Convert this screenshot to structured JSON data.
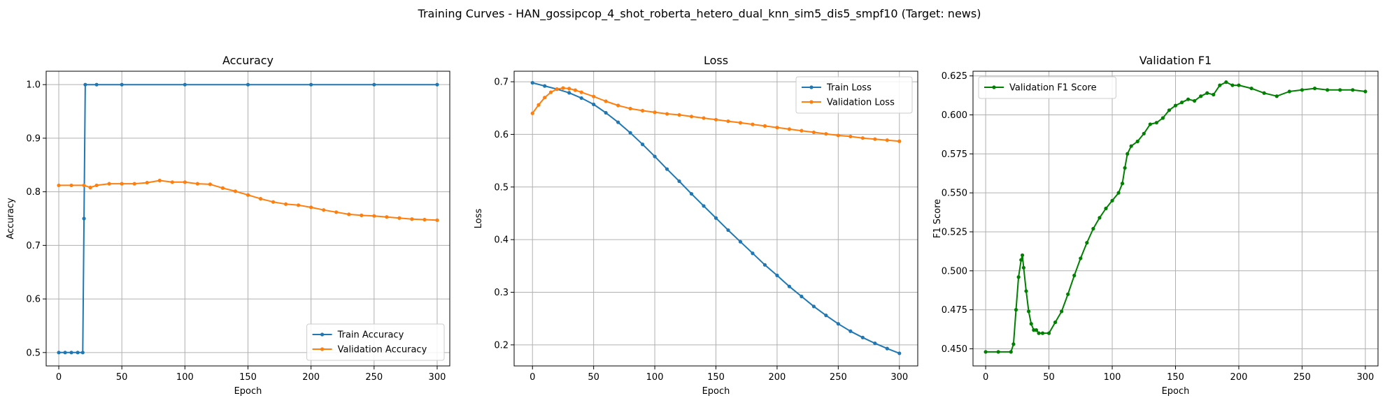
{
  "figure": {
    "suptitle": "Training Curves - HAN_gossipcop_4_shot_roberta_hetero_dual_knn_sim5_dis5_smpf10 (Target: news)"
  },
  "chart_data": [
    {
      "type": "line",
      "title": "Accuracy",
      "xlabel": "Epoch",
      "ylabel": "Accuracy",
      "xlim": [
        -10,
        310
      ],
      "ylim": [
        0.475,
        1.025
      ],
      "xticks": [
        0,
        50,
        100,
        150,
        200,
        250,
        300
      ],
      "yticks": [
        0.5,
        0.6,
        0.7,
        0.8,
        0.9,
        1.0
      ],
      "ytick_labels": [
        "0.5",
        "0.6",
        "0.7",
        "0.8",
        "0.9",
        "1.0"
      ],
      "grid": true,
      "legend": "lower-right",
      "series": [
        {
          "name": "Train Accuracy",
          "color": "#1f77b4",
          "x": [
            0,
            5,
            10,
            15,
            19,
            20,
            21,
            30,
            50,
            100,
            150,
            200,
            250,
            300
          ],
          "y": [
            0.5,
            0.5,
            0.5,
            0.5,
            0.5,
            0.75,
            1.0,
            1.0,
            1.0,
            1.0,
            1.0,
            1.0,
            1.0,
            1.0
          ]
        },
        {
          "name": "Validation Accuracy",
          "color": "#ff7f0e",
          "x": [
            0,
            10,
            20,
            25,
            30,
            40,
            50,
            60,
            70,
            80,
            90,
            100,
            110,
            120,
            130,
            140,
            150,
            160,
            170,
            180,
            190,
            200,
            210,
            220,
            230,
            240,
            250,
            260,
            270,
            280,
            290,
            300
          ],
          "y": [
            0.812,
            0.812,
            0.812,
            0.808,
            0.812,
            0.815,
            0.815,
            0.815,
            0.817,
            0.821,
            0.818,
            0.818,
            0.815,
            0.814,
            0.807,
            0.801,
            0.794,
            0.787,
            0.781,
            0.777,
            0.775,
            0.771,
            0.766,
            0.762,
            0.758,
            0.756,
            0.755,
            0.753,
            0.751,
            0.749,
            0.748,
            0.747
          ]
        }
      ]
    },
    {
      "type": "line",
      "title": "Loss",
      "xlabel": "Epoch",
      "ylabel": "Loss",
      "xlim": [
        -15,
        315
      ],
      "ylim": [
        0.16,
        0.72
      ],
      "xticks": [
        0,
        50,
        100,
        150,
        200,
        250,
        300
      ],
      "yticks": [
        0.2,
        0.3,
        0.4,
        0.5,
        0.6,
        0.7
      ],
      "ytick_labels": [
        "0.2",
        "0.3",
        "0.4",
        "0.5",
        "0.6",
        "0.7"
      ],
      "grid": true,
      "legend": "upper-right",
      "series": [
        {
          "name": "Train Loss",
          "color": "#1f77b4",
          "x": [
            0,
            10,
            20,
            30,
            40,
            50,
            60,
            70,
            80,
            90,
            100,
            110,
            120,
            130,
            140,
            150,
            160,
            170,
            180,
            190,
            200,
            210,
            220,
            230,
            240,
            250,
            260,
            270,
            280,
            290,
            300
          ],
          "y": [
            0.698,
            0.692,
            0.686,
            0.679,
            0.669,
            0.657,
            0.641,
            0.623,
            0.603,
            0.581,
            0.558,
            0.534,
            0.511,
            0.487,
            0.464,
            0.441,
            0.418,
            0.396,
            0.374,
            0.352,
            0.332,
            0.311,
            0.292,
            0.273,
            0.256,
            0.24,
            0.226,
            0.214,
            0.203,
            0.193,
            0.184
          ]
        },
        {
          "name": "Validation Loss",
          "color": "#ff7f0e",
          "x": [
            0,
            5,
            10,
            15,
            20,
            25,
            30,
            35,
            40,
            50,
            60,
            70,
            80,
            90,
            100,
            110,
            120,
            130,
            140,
            150,
            160,
            170,
            180,
            190,
            200,
            210,
            220,
            230,
            240,
            250,
            260,
            270,
            280,
            290,
            300
          ],
          "y": [
            0.64,
            0.656,
            0.67,
            0.68,
            0.686,
            0.688,
            0.687,
            0.684,
            0.68,
            0.672,
            0.663,
            0.655,
            0.649,
            0.645,
            0.642,
            0.639,
            0.637,
            0.634,
            0.631,
            0.628,
            0.625,
            0.622,
            0.619,
            0.616,
            0.613,
            0.61,
            0.607,
            0.604,
            0.601,
            0.598,
            0.596,
            0.593,
            0.591,
            0.589,
            0.587
          ]
        }
      ]
    },
    {
      "type": "line",
      "title": "Validation F1",
      "xlabel": "Epoch",
      "ylabel": "F1 Score",
      "xlim": [
        -10,
        310
      ],
      "ylim": [
        0.439,
        0.628
      ],
      "xticks": [
        0,
        50,
        100,
        150,
        200,
        250,
        300
      ],
      "yticks": [
        0.45,
        0.475,
        0.5,
        0.525,
        0.55,
        0.575,
        0.6,
        0.625
      ],
      "ytick_labels": [
        "0.450",
        "0.475",
        "0.500",
        "0.525",
        "0.550",
        "0.575",
        "0.600",
        "0.625"
      ],
      "grid": true,
      "legend": "upper-left",
      "series": [
        {
          "name": "Validation F1 Score",
          "color": "#008000",
          "x": [
            0,
            10,
            20,
            22,
            24,
            26,
            28,
            29,
            30,
            32,
            34,
            36,
            38,
            40,
            42,
            45,
            50,
            55,
            60,
            65,
            70,
            75,
            80,
            85,
            90,
            95,
            100,
            105,
            108,
            110,
            112,
            115,
            120,
            125,
            130,
            135,
            140,
            145,
            150,
            155,
            160,
            165,
            170,
            175,
            180,
            185,
            190,
            195,
            200,
            210,
            220,
            230,
            240,
            250,
            260,
            270,
            280,
            290,
            300
          ],
          "y": [
            0.448,
            0.448,
            0.448,
            0.453,
            0.475,
            0.496,
            0.507,
            0.51,
            0.502,
            0.487,
            0.474,
            0.466,
            0.462,
            0.462,
            0.46,
            0.46,
            0.46,
            0.467,
            0.474,
            0.485,
            0.497,
            0.508,
            0.518,
            0.527,
            0.534,
            0.54,
            0.545,
            0.55,
            0.556,
            0.566,
            0.575,
            0.58,
            0.583,
            0.588,
            0.594,
            0.595,
            0.598,
            0.603,
            0.606,
            0.608,
            0.61,
            0.609,
            0.612,
            0.614,
            0.613,
            0.619,
            0.621,
            0.619,
            0.619,
            0.617,
            0.614,
            0.612,
            0.615,
            0.616,
            0.617,
            0.616,
            0.616,
            0.616,
            0.615
          ]
        }
      ]
    }
  ]
}
